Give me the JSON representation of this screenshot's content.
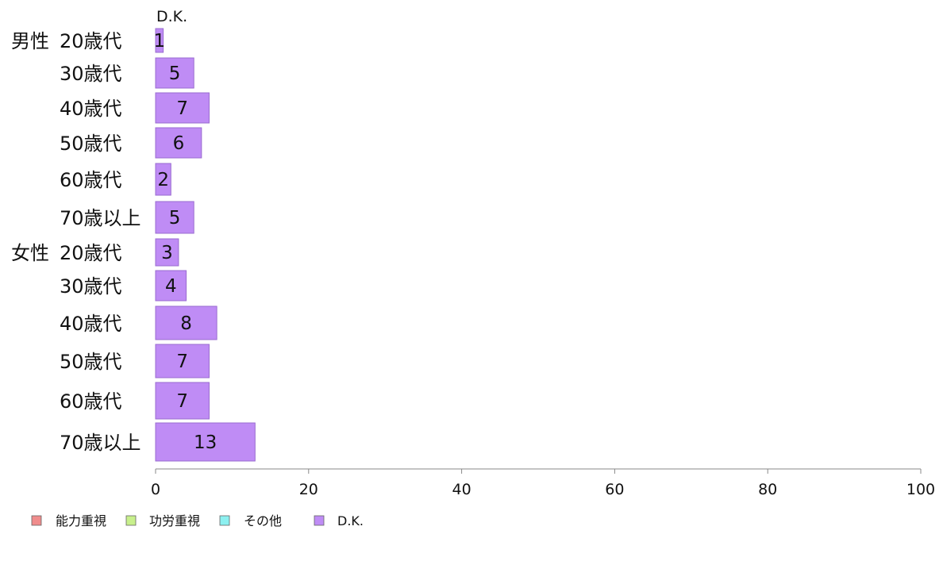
{
  "chart_data": {
    "type": "bar",
    "orientation": "horizontal",
    "stacked": true,
    "series_title": "D.K.",
    "groups": [
      {
        "name": "男性",
        "categories": [
          "20歳代",
          "30歳代",
          "40歳代",
          "50歳代",
          "60歳代",
          "70歳以上"
        ]
      },
      {
        "name": "女性",
        "categories": [
          "20歳代",
          "30歳代",
          "40歳代",
          "50歳代",
          "60歳代",
          "70歳以上"
        ]
      }
    ],
    "series": [
      {
        "name": "能力重視",
        "color": "#f08c8c",
        "values": [
          0,
          0,
          0,
          0,
          0,
          0,
          0,
          0,
          0,
          0,
          0,
          0
        ]
      },
      {
        "name": "功労重視",
        "color": "#c8f08c",
        "values": [
          0,
          0,
          0,
          0,
          0,
          0,
          0,
          0,
          0,
          0,
          0,
          0
        ]
      },
      {
        "name": "その他",
        "color": "#8cf0f0",
        "values": [
          0,
          0,
          0,
          0,
          0,
          0,
          0,
          0,
          0,
          0,
          0,
          0
        ]
      },
      {
        "name": "D.K.",
        "color": "#bf8cf5",
        "values": [
          1,
          5,
          7,
          6,
          2,
          5,
          3,
          4,
          8,
          7,
          7,
          13
        ]
      }
    ],
    "xlim": [
      0,
      100
    ],
    "xticks": [
      0,
      20,
      40,
      60,
      80,
      100
    ],
    "legend_position": "bottom-left",
    "grid": false
  }
}
